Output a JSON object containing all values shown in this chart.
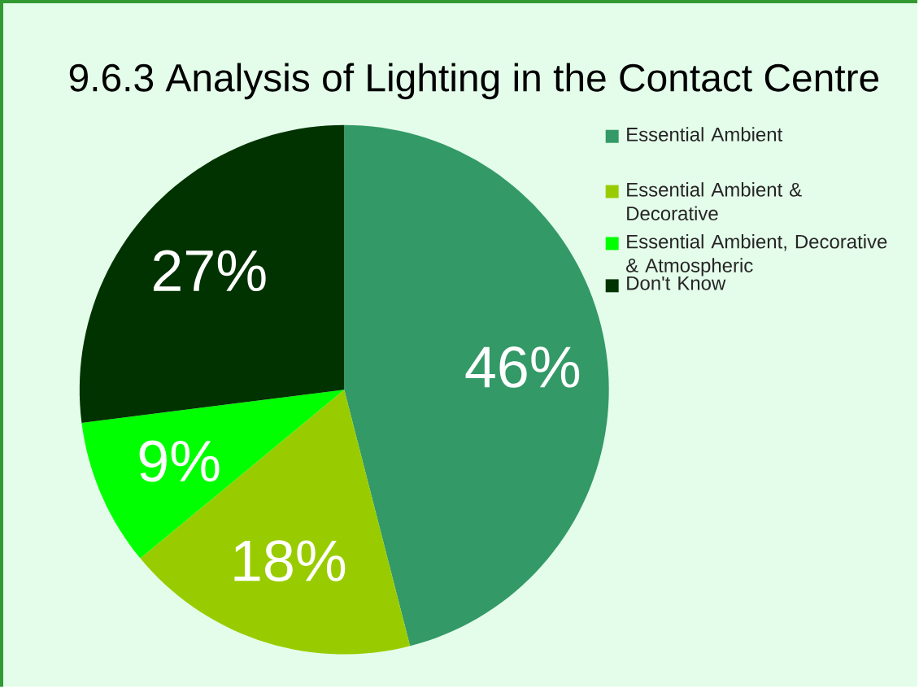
{
  "chart_data": {
    "type": "pie",
    "title": "9.6.3 Analysis of Lighting in the Contact Centre",
    "categories": [
      "Essential Ambient",
      "Essential Ambient & Decorative",
      "Essential Ambient, Decorative & Atmospheric",
      "Don't Know"
    ],
    "values": [
      46,
      18,
      9,
      27
    ],
    "colors": [
      "#339966",
      "#99cc00",
      "#00ff00",
      "#003300"
    ],
    "value_labels": [
      "46%",
      "18%",
      "9%",
      "27%"
    ],
    "legend": "right"
  }
}
